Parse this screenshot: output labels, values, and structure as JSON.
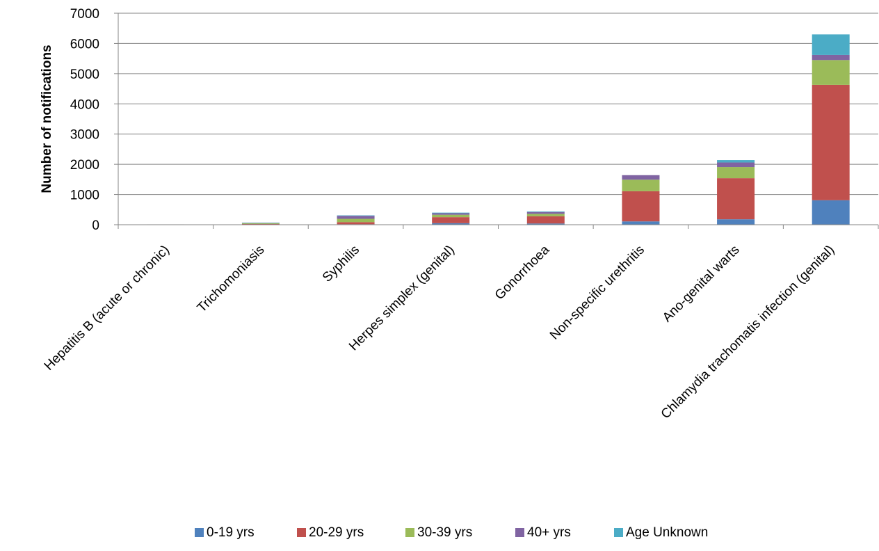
{
  "chart_data": {
    "type": "bar",
    "stacked": true,
    "title": "",
    "xlabel": "",
    "ylabel": "Number of notifications",
    "ylim": [
      0,
      7000
    ],
    "yticks": [
      0,
      1000,
      2000,
      3000,
      4000,
      5000,
      6000,
      7000
    ],
    "grid": "horizontal",
    "legend_position": "bottom",
    "categories": [
      "Hepatitis B (acute or chronic)",
      "Trichomoniasis",
      "Syphilis",
      "Herpes simplex (genital)",
      "Gonorrhoea",
      "Non-specific urethritis",
      "Ano-genital warts",
      "Chlamydia trachomatis infection (genital)"
    ],
    "series": [
      {
        "name": "0-19 yrs",
        "color": "#4F81BD",
        "values": [
          2,
          5,
          15,
          50,
          40,
          110,
          180,
          810
        ]
      },
      {
        "name": "20-29 yrs",
        "color": "#C0504D",
        "values": [
          4,
          20,
          70,
          200,
          240,
          1000,
          1360,
          3820
        ]
      },
      {
        "name": "30-39 yrs",
        "color": "#9BBB59",
        "values": [
          3,
          25,
          110,
          80,
          80,
          380,
          370,
          820
        ]
      },
      {
        "name": "40+ yrs",
        "color": "#8064A2",
        "values": [
          3,
          15,
          100,
          50,
          60,
          150,
          150,
          170
        ]
      },
      {
        "name": "Age Unknown",
        "color": "#4BACC6",
        "values": [
          0,
          5,
          15,
          20,
          20,
          0,
          80,
          680
        ]
      }
    ]
  }
}
